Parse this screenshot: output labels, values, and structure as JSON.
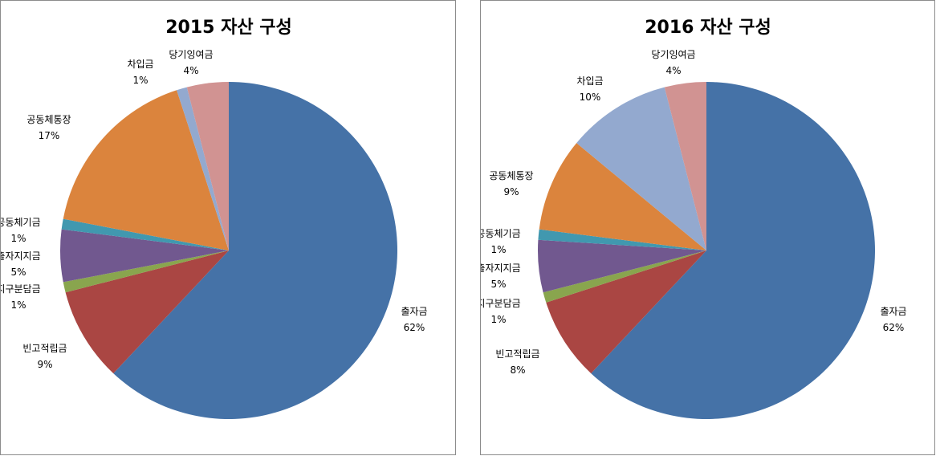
{
  "chart_data": [
    {
      "type": "pie",
      "title": "2015 자산 구성",
      "slices": [
        {
          "label": "출자금",
          "value": 62,
          "value_label": "62%",
          "color": "#4572A7"
        },
        {
          "label": "빈고적립금",
          "value": 9,
          "value_label": "9%",
          "color": "#AA4643"
        },
        {
          "label": "지구분담금",
          "value": 1,
          "value_label": "1%",
          "color": "#89A54E"
        },
        {
          "label": "출자지지금",
          "value": 5,
          "value_label": "5%",
          "color": "#71588F"
        },
        {
          "label": "공동체기금",
          "value": 1,
          "value_label": "1%",
          "color": "#4198AF"
        },
        {
          "label": "공동체통장",
          "value": 17,
          "value_label": "17%",
          "color": "#DB843D"
        },
        {
          "label": "차입금",
          "value": 1,
          "value_label": "1%",
          "color": "#93A9CF"
        },
        {
          "label": "당기잉여금",
          "value": 4,
          "value_label": "4%",
          "color": "#D19392"
        }
      ]
    },
    {
      "type": "pie",
      "title": "2016 자산 구성",
      "slices": [
        {
          "label": "출자금",
          "value": 62,
          "value_label": "62%",
          "color": "#4572A7"
        },
        {
          "label": "빈고적립금",
          "value": 8,
          "value_label": "8%",
          "color": "#AA4643"
        },
        {
          "label": "지구분담금",
          "value": 1,
          "value_label": "1%",
          "color": "#89A54E"
        },
        {
          "label": "출자지지금",
          "value": 5,
          "value_label": "5%",
          "color": "#71588F"
        },
        {
          "label": "공동체기금",
          "value": 1,
          "value_label": "1%",
          "color": "#4198AF"
        },
        {
          "label": "공동체통장",
          "value": 9,
          "value_label": "9%",
          "color": "#DB843D"
        },
        {
          "label": "차입금",
          "value": 10,
          "value_label": "10%",
          "color": "#93A9CF"
        },
        {
          "label": "당기잉여금",
          "value": 4,
          "value_label": "4%",
          "color": "#D19392"
        }
      ]
    }
  ]
}
